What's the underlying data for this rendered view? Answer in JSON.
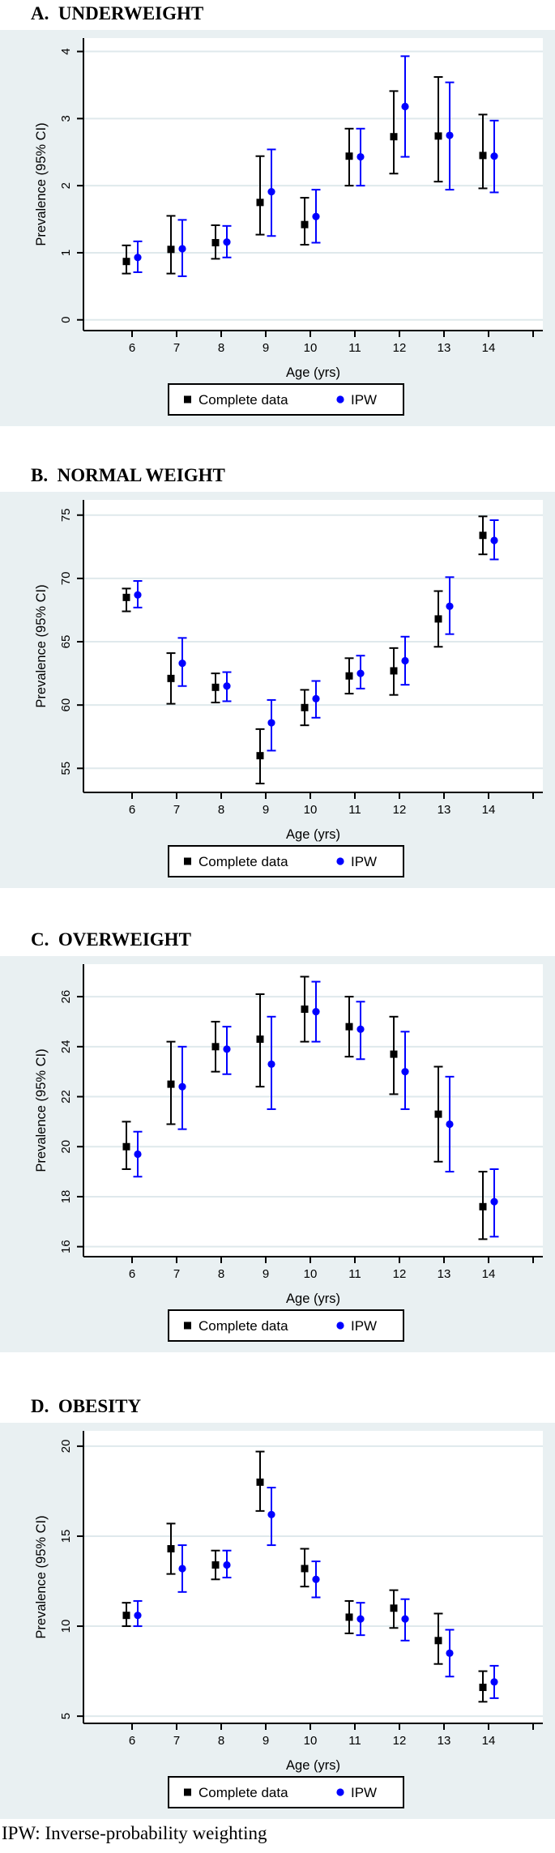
{
  "colors": {
    "plot_bg": "#e9f0f2",
    "inner_bg": "#ffffff",
    "grid": "#dfe9ec",
    "axis": "#000000",
    "complete": "#000000",
    "ipw": "#0000ff"
  },
  "xlabel": "Age (yrs)",
  "ylabel": "Prevalence (95% CI)",
  "legend": {
    "complete_label": "Complete data",
    "ipw_label": "IPW"
  },
  "footer": "IPW: Inverse-probability weighting",
  "chart_data": [
    {
      "type": "scatter",
      "id": "underweight",
      "title": "A.  UNDERWEIGHT",
      "x": [
        6,
        7,
        8,
        9,
        10,
        11,
        12,
        13,
        14
      ],
      "ylim": [
        -0.16,
        4.2
      ],
      "yticks": [
        0,
        1,
        2,
        3,
        4
      ],
      "series": [
        {
          "name": "Complete data",
          "marker": "square",
          "values": [
            0.87,
            1.05,
            1.15,
            1.75,
            1.42,
            2.44,
            2.73,
            2.74,
            2.45
          ],
          "ci_low": [
            0.69,
            0.69,
            0.91,
            1.27,
            1.12,
            2.0,
            2.18,
            2.06,
            1.96
          ],
          "ci_high": [
            1.11,
            1.55,
            1.41,
            2.44,
            1.82,
            2.85,
            3.41,
            3.62,
            3.06
          ]
        },
        {
          "name": "IPW",
          "marker": "circle",
          "values": [
            0.93,
            1.06,
            1.16,
            1.91,
            1.54,
            2.43,
            3.18,
            2.75,
            2.44
          ],
          "ci_low": [
            0.71,
            0.65,
            0.93,
            1.25,
            1.15,
            2.0,
            2.43,
            1.94,
            1.9
          ],
          "ci_high": [
            1.17,
            1.49,
            1.4,
            2.54,
            1.94,
            2.85,
            3.93,
            3.54,
            2.97
          ]
        }
      ]
    },
    {
      "type": "scatter",
      "id": "normal-weight",
      "title": "B.  NORMAL WEIGHT",
      "x": [
        6,
        7,
        8,
        9,
        10,
        11,
        12,
        13,
        14
      ],
      "ylim": [
        53.1,
        76.2
      ],
      "yticks": [
        55,
        60,
        65,
        70,
        75
      ],
      "series": [
        {
          "name": "Complete data",
          "marker": "square",
          "values": [
            68.5,
            62.1,
            61.4,
            56.0,
            59.8,
            62.3,
            62.7,
            66.8,
            73.4
          ],
          "ci_low": [
            67.4,
            60.1,
            60.2,
            53.8,
            58.4,
            60.9,
            60.8,
            64.6,
            71.9
          ],
          "ci_high": [
            69.2,
            64.1,
            62.5,
            58.1,
            61.2,
            63.7,
            64.5,
            69.0,
            74.9
          ]
        },
        {
          "name": "IPW",
          "marker": "circle",
          "values": [
            68.7,
            63.3,
            61.5,
            58.6,
            60.5,
            62.5,
            63.5,
            67.8,
            73.0
          ],
          "ci_low": [
            67.7,
            61.5,
            60.3,
            56.4,
            59.0,
            61.3,
            61.6,
            65.6,
            71.5
          ],
          "ci_high": [
            69.8,
            65.3,
            62.6,
            60.4,
            61.9,
            63.9,
            65.4,
            70.1,
            74.6
          ]
        }
      ]
    },
    {
      "type": "scatter",
      "id": "overweight",
      "title": "C.  OVERWEIGHT",
      "x": [
        6,
        7,
        8,
        9,
        10,
        11,
        12,
        13,
        14
      ],
      "ylim": [
        15.6,
        27.3
      ],
      "yticks": [
        16,
        18,
        20,
        22,
        24,
        26
      ],
      "series": [
        {
          "name": "Complete data",
          "marker": "square",
          "values": [
            20.0,
            22.5,
            24.0,
            24.3,
            25.5,
            24.8,
            23.7,
            21.3,
            17.6
          ],
          "ci_low": [
            19.1,
            20.9,
            23.0,
            22.4,
            24.2,
            23.6,
            22.1,
            19.4,
            16.3
          ],
          "ci_high": [
            21.0,
            24.2,
            25.0,
            26.1,
            26.8,
            26.0,
            25.2,
            23.2,
            19.0
          ]
        },
        {
          "name": "IPW",
          "marker": "circle",
          "values": [
            19.7,
            22.4,
            23.9,
            23.3,
            25.4,
            24.7,
            23.0,
            20.9,
            17.8
          ],
          "ci_low": [
            18.8,
            20.7,
            22.9,
            21.5,
            24.2,
            23.5,
            21.5,
            19.0,
            16.4
          ],
          "ci_high": [
            20.6,
            24.0,
            24.8,
            25.2,
            26.6,
            25.8,
            24.6,
            22.8,
            19.1
          ]
        }
      ]
    },
    {
      "type": "scatter",
      "id": "obesity",
      "title": "D.  OBESITY",
      "x": [
        6,
        7,
        8,
        9,
        10,
        11,
        12,
        13,
        14
      ],
      "ylim": [
        4.6,
        20.85
      ],
      "yticks": [
        5,
        10,
        15,
        20
      ],
      "series": [
        {
          "name": "Complete data",
          "marker": "square",
          "values": [
            10.6,
            14.3,
            13.4,
            18.0,
            13.2,
            10.5,
            11.0,
            9.2,
            6.6
          ],
          "ci_low": [
            10.0,
            12.9,
            12.6,
            16.4,
            12.2,
            9.6,
            9.9,
            7.9,
            5.8
          ],
          "ci_high": [
            11.3,
            15.7,
            14.2,
            19.7,
            14.3,
            11.4,
            12.0,
            10.7,
            7.5
          ]
        },
        {
          "name": "IPW",
          "marker": "circle",
          "values": [
            10.6,
            13.2,
            13.4,
            16.2,
            12.6,
            10.4,
            10.4,
            8.5,
            6.9
          ],
          "ci_low": [
            10.0,
            11.9,
            12.7,
            14.5,
            11.6,
            9.5,
            9.2,
            7.2,
            6.0
          ],
          "ci_high": [
            11.4,
            14.5,
            14.2,
            17.7,
            13.6,
            11.3,
            11.5,
            9.8,
            7.8
          ]
        }
      ]
    }
  ]
}
